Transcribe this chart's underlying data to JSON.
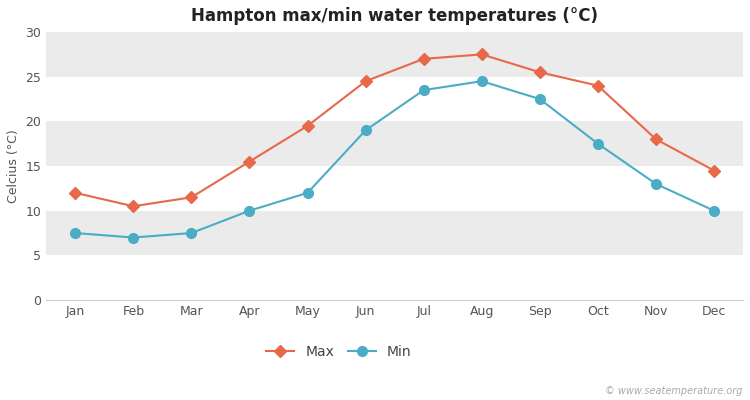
{
  "title": "Hampton max/min water temperatures (°C)",
  "ylabel": "Celcius (°C)",
  "months": [
    "Jan",
    "Feb",
    "Mar",
    "Apr",
    "May",
    "Jun",
    "Jul",
    "Aug",
    "Sep",
    "Oct",
    "Nov",
    "Dec"
  ],
  "max_temps": [
    12.0,
    10.5,
    11.5,
    15.5,
    19.5,
    24.5,
    27.0,
    27.5,
    25.5,
    24.0,
    18.0,
    14.5
  ],
  "min_temps": [
    7.5,
    7.0,
    7.5,
    10.0,
    12.0,
    19.0,
    23.5,
    24.5,
    22.5,
    17.5,
    13.0,
    10.0
  ],
  "max_color": "#e8694a",
  "min_color": "#4bacc6",
  "fig_bg_color": "#ffffff",
  "plot_bg_color": "#ebebeb",
  "band_color": "#e0e0e0",
  "grid_color": "#ffffff",
  "ylim": [
    0,
    30
  ],
  "yticks": [
    0,
    5,
    10,
    15,
    20,
    25,
    30
  ],
  "watermark": "© www.seatemperature.org",
  "title_fontsize": 12,
  "label_fontsize": 9,
  "tick_fontsize": 9,
  "legend_fontsize": 10,
  "max_marker": "D",
  "min_marker": "o",
  "line_width": 1.5,
  "max_marker_size": 6,
  "min_marker_size": 7
}
